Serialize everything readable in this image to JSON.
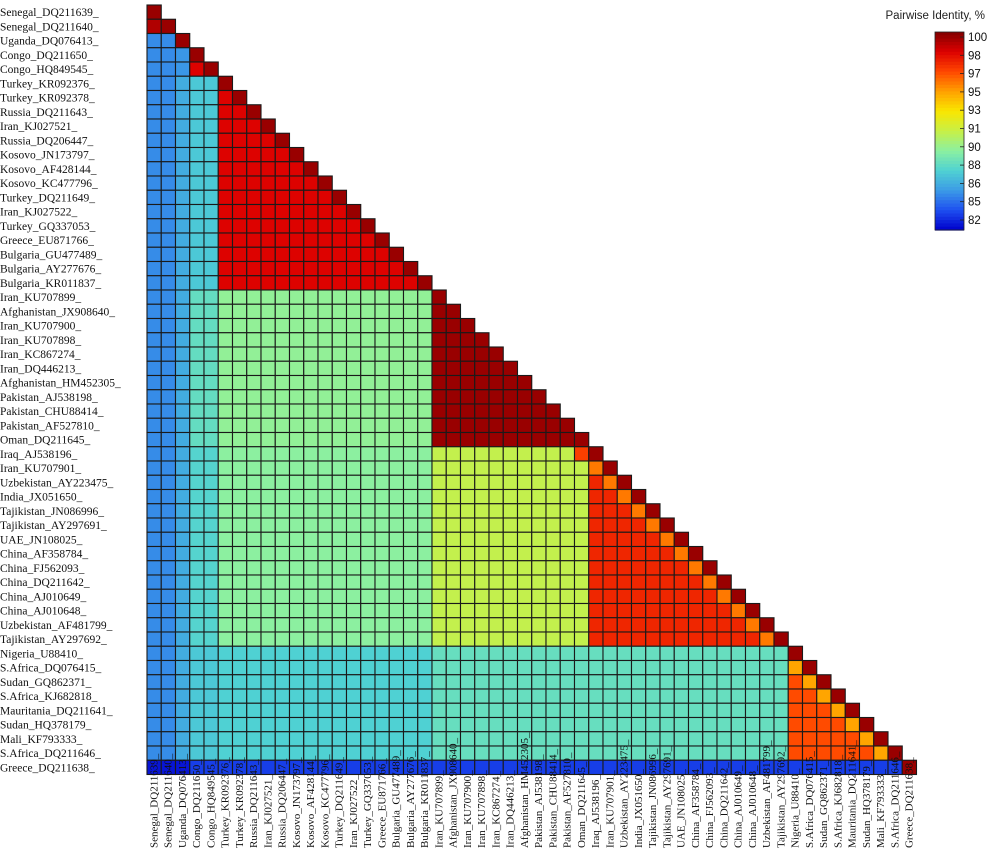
{
  "chart_data": {
    "type": "heatmap",
    "title": "",
    "xlabel": "",
    "ylabel": "",
    "legend": {
      "title": "Pairwise Identity, %",
      "placement": "top-right",
      "ticks": [
        100,
        98,
        97,
        95,
        93,
        91,
        90,
        88,
        86,
        85,
        82
      ],
      "range": [
        81,
        100.5
      ],
      "colors": [
        "#0000cc",
        "#1e50f0",
        "#3c9be6",
        "#50d2d2",
        "#8cf0a0",
        "#c8f046",
        "#fae600",
        "#ffa000",
        "#ff4600",
        "#dc0000",
        "#820000"
      ]
    },
    "labels": [
      "Senegal_DQ211639_",
      "Senegal_DQ211640_",
      "Uganda_DQ076413_",
      "Congo_DQ211650_",
      "Congo_HQ849545_",
      "Turkey_KR092376_",
      "Turkey_KR092378_",
      "Russia_DQ211643_",
      "Iran_KJ027521_",
      "Russia_DQ206447_",
      "Kosovo_JN173797_",
      "Kosovo_AF428144_",
      "Kosovo_KC477796_",
      "Turkey_DQ211649_",
      "Iran_KJ027522_",
      "Turkey_GQ337053_",
      "Greece_EU871766_",
      "Bulgaria_GU477489_",
      "Bulgaria_AY277676_",
      "Bulgaria_KR011837_",
      "Iran_KU707899_",
      "Afghanistan_JX908640_",
      "Iran_KU707900_",
      "Iran_KU707898_",
      "Iran_KC867274_",
      "Iran_DQ446213_",
      "Afghanistan_HM452305_",
      "Pakistan_AJ538198_",
      "Pakistan_CHU88414_",
      "Pakistan_AF527810_",
      "Oman_DQ211645_",
      "Iraq_AJ538196_",
      "Iran_KU707901_",
      "Uzbekistan_AY223475_",
      "India_JX051650_",
      "Tajikistan_JN086996_",
      "Tajikistan_AY297691_",
      "UAE_JN108025_",
      "China_AF358784_",
      "China_FJ562093_",
      "China_DQ211642_",
      "China_AJ010649_",
      "China_AJ010648_",
      "Uzbekistan_AF481799_",
      "Tajikistan_AY297692_",
      "Nigeria_U88410_",
      "S.Africa_DQ076415_",
      "Sudan_GQ862371_",
      "S.Africa_KJ682818_",
      "Mauritania_DQ211641_",
      "Sudan_HQ378179_",
      "Mali_KF793333_",
      "S.Africa_DQ211646_",
      "Greece_DQ211638_"
    ],
    "group_bounds": [
      2,
      3,
      5,
      20,
      31,
      45,
      53,
      54
    ],
    "block_identity": [
      [
        99.5
      ],
      [
        84.5,
        99
      ],
      [
        84.5,
        84.8,
        98.5
      ],
      [
        84.5,
        85.5,
        86.5,
        98.5
      ],
      [
        84.5,
        85.5,
        87.5,
        89,
        100
      ],
      [
        84.5,
        85.5,
        87,
        88.8,
        90.6,
        97.5
      ],
      [
        84.5,
        85.5,
        86.5,
        86.8,
        87.6,
        87.6,
        96.5
      ],
      [
        81.5,
        81.5,
        82.5,
        82.5,
        82.5,
        82.5,
        82.5,
        100
      ]
    ],
    "block_edge_identity": [
      [
        null
      ],
      [
        null,
        null
      ],
      [
        null,
        null,
        null
      ],
      [
        null,
        98,
        null,
        null
      ],
      [
        null,
        null,
        null,
        null,
        null
      ],
      [
        null,
        null,
        null,
        97.3,
        96.8,
        95.5
      ],
      [
        null,
        null,
        null,
        null,
        null,
        null,
        94.5
      ],
      [
        null,
        null,
        null,
        null,
        null,
        null,
        null,
        null
      ]
    ]
  }
}
